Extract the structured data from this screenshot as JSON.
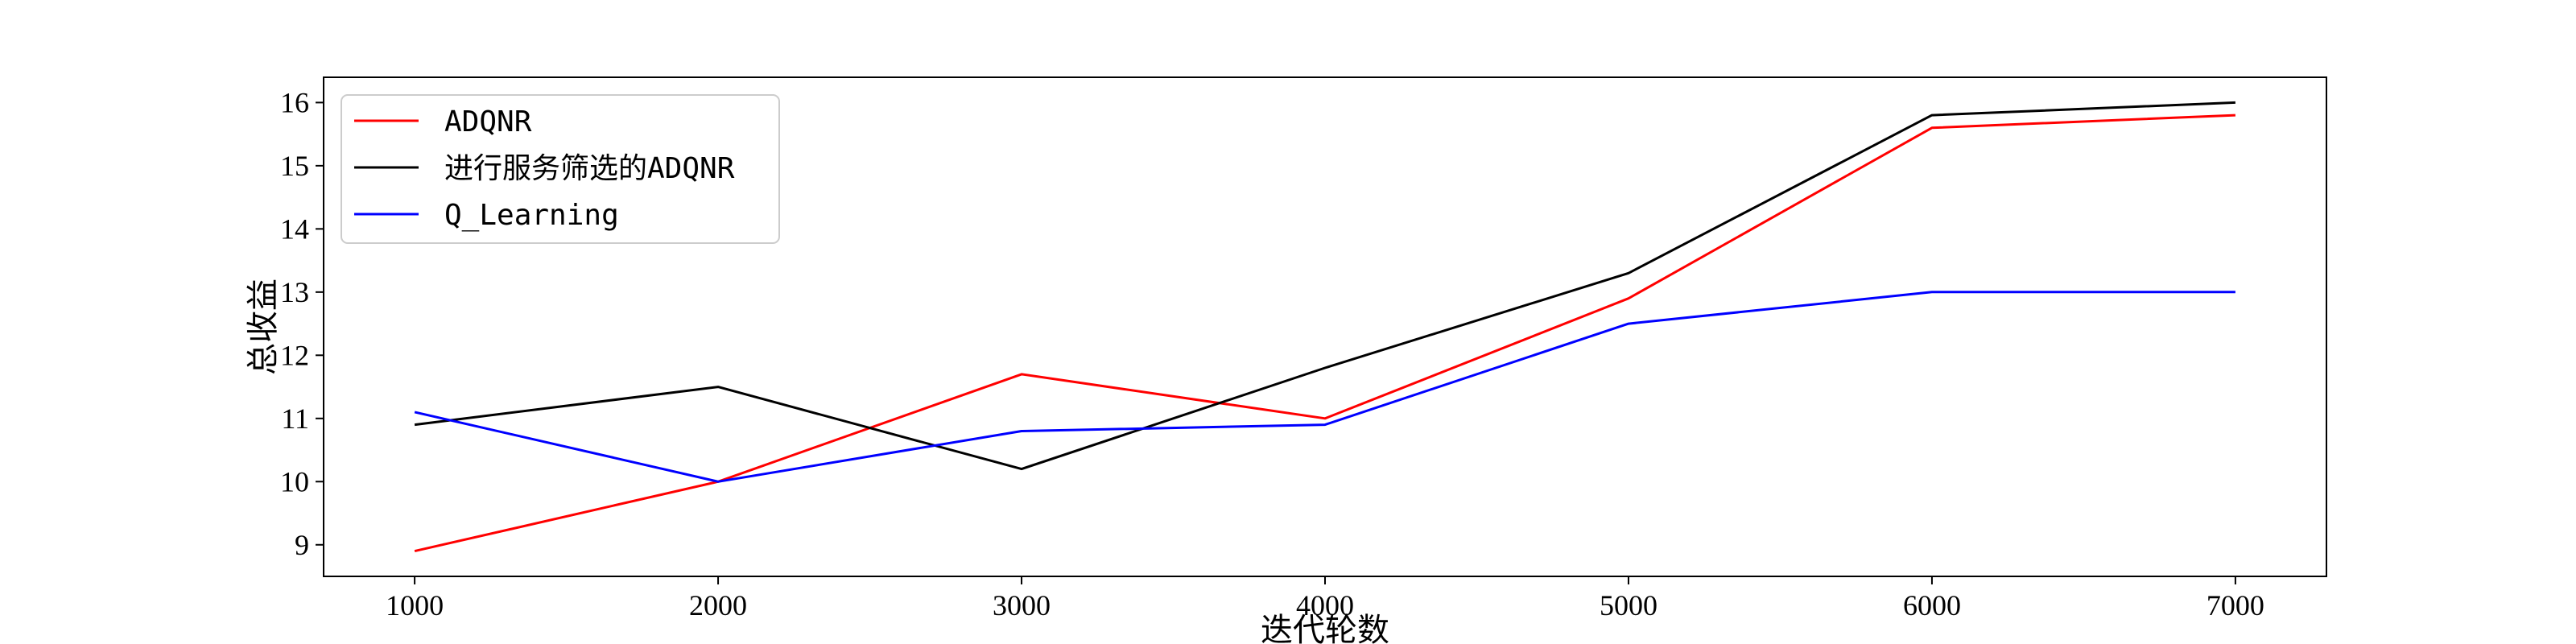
{
  "chart_data": {
    "type": "line",
    "title": "",
    "xlabel": "迭代轮数",
    "ylabel": "总收益",
    "x": [
      1000,
      2000,
      3000,
      4000,
      5000,
      6000,
      7000
    ],
    "xticks": [
      1000,
      2000,
      3000,
      4000,
      5000,
      6000,
      7000
    ],
    "yticks": [
      9,
      10,
      11,
      12,
      13,
      14,
      15,
      16
    ],
    "xlim": [
      700,
      7300
    ],
    "ylim": [
      8.5,
      16.4
    ],
    "grid": false,
    "legend_position": "top-left",
    "series": [
      {
        "name": "ADQNR",
        "color": "#ff0000",
        "values": [
          8.9,
          10.0,
          11.7,
          11.0,
          12.9,
          15.6,
          15.8
        ]
      },
      {
        "name": "进行服务筛选的ADQNR",
        "color": "#000000",
        "values": [
          10.9,
          11.5,
          10.2,
          11.8,
          13.3,
          15.8,
          16.0
        ]
      },
      {
        "name": "Q_Learning",
        "color": "#0000ff",
        "values": [
          11.1,
          10.0,
          10.8,
          10.9,
          12.5,
          13.0,
          13.0
        ]
      }
    ]
  }
}
